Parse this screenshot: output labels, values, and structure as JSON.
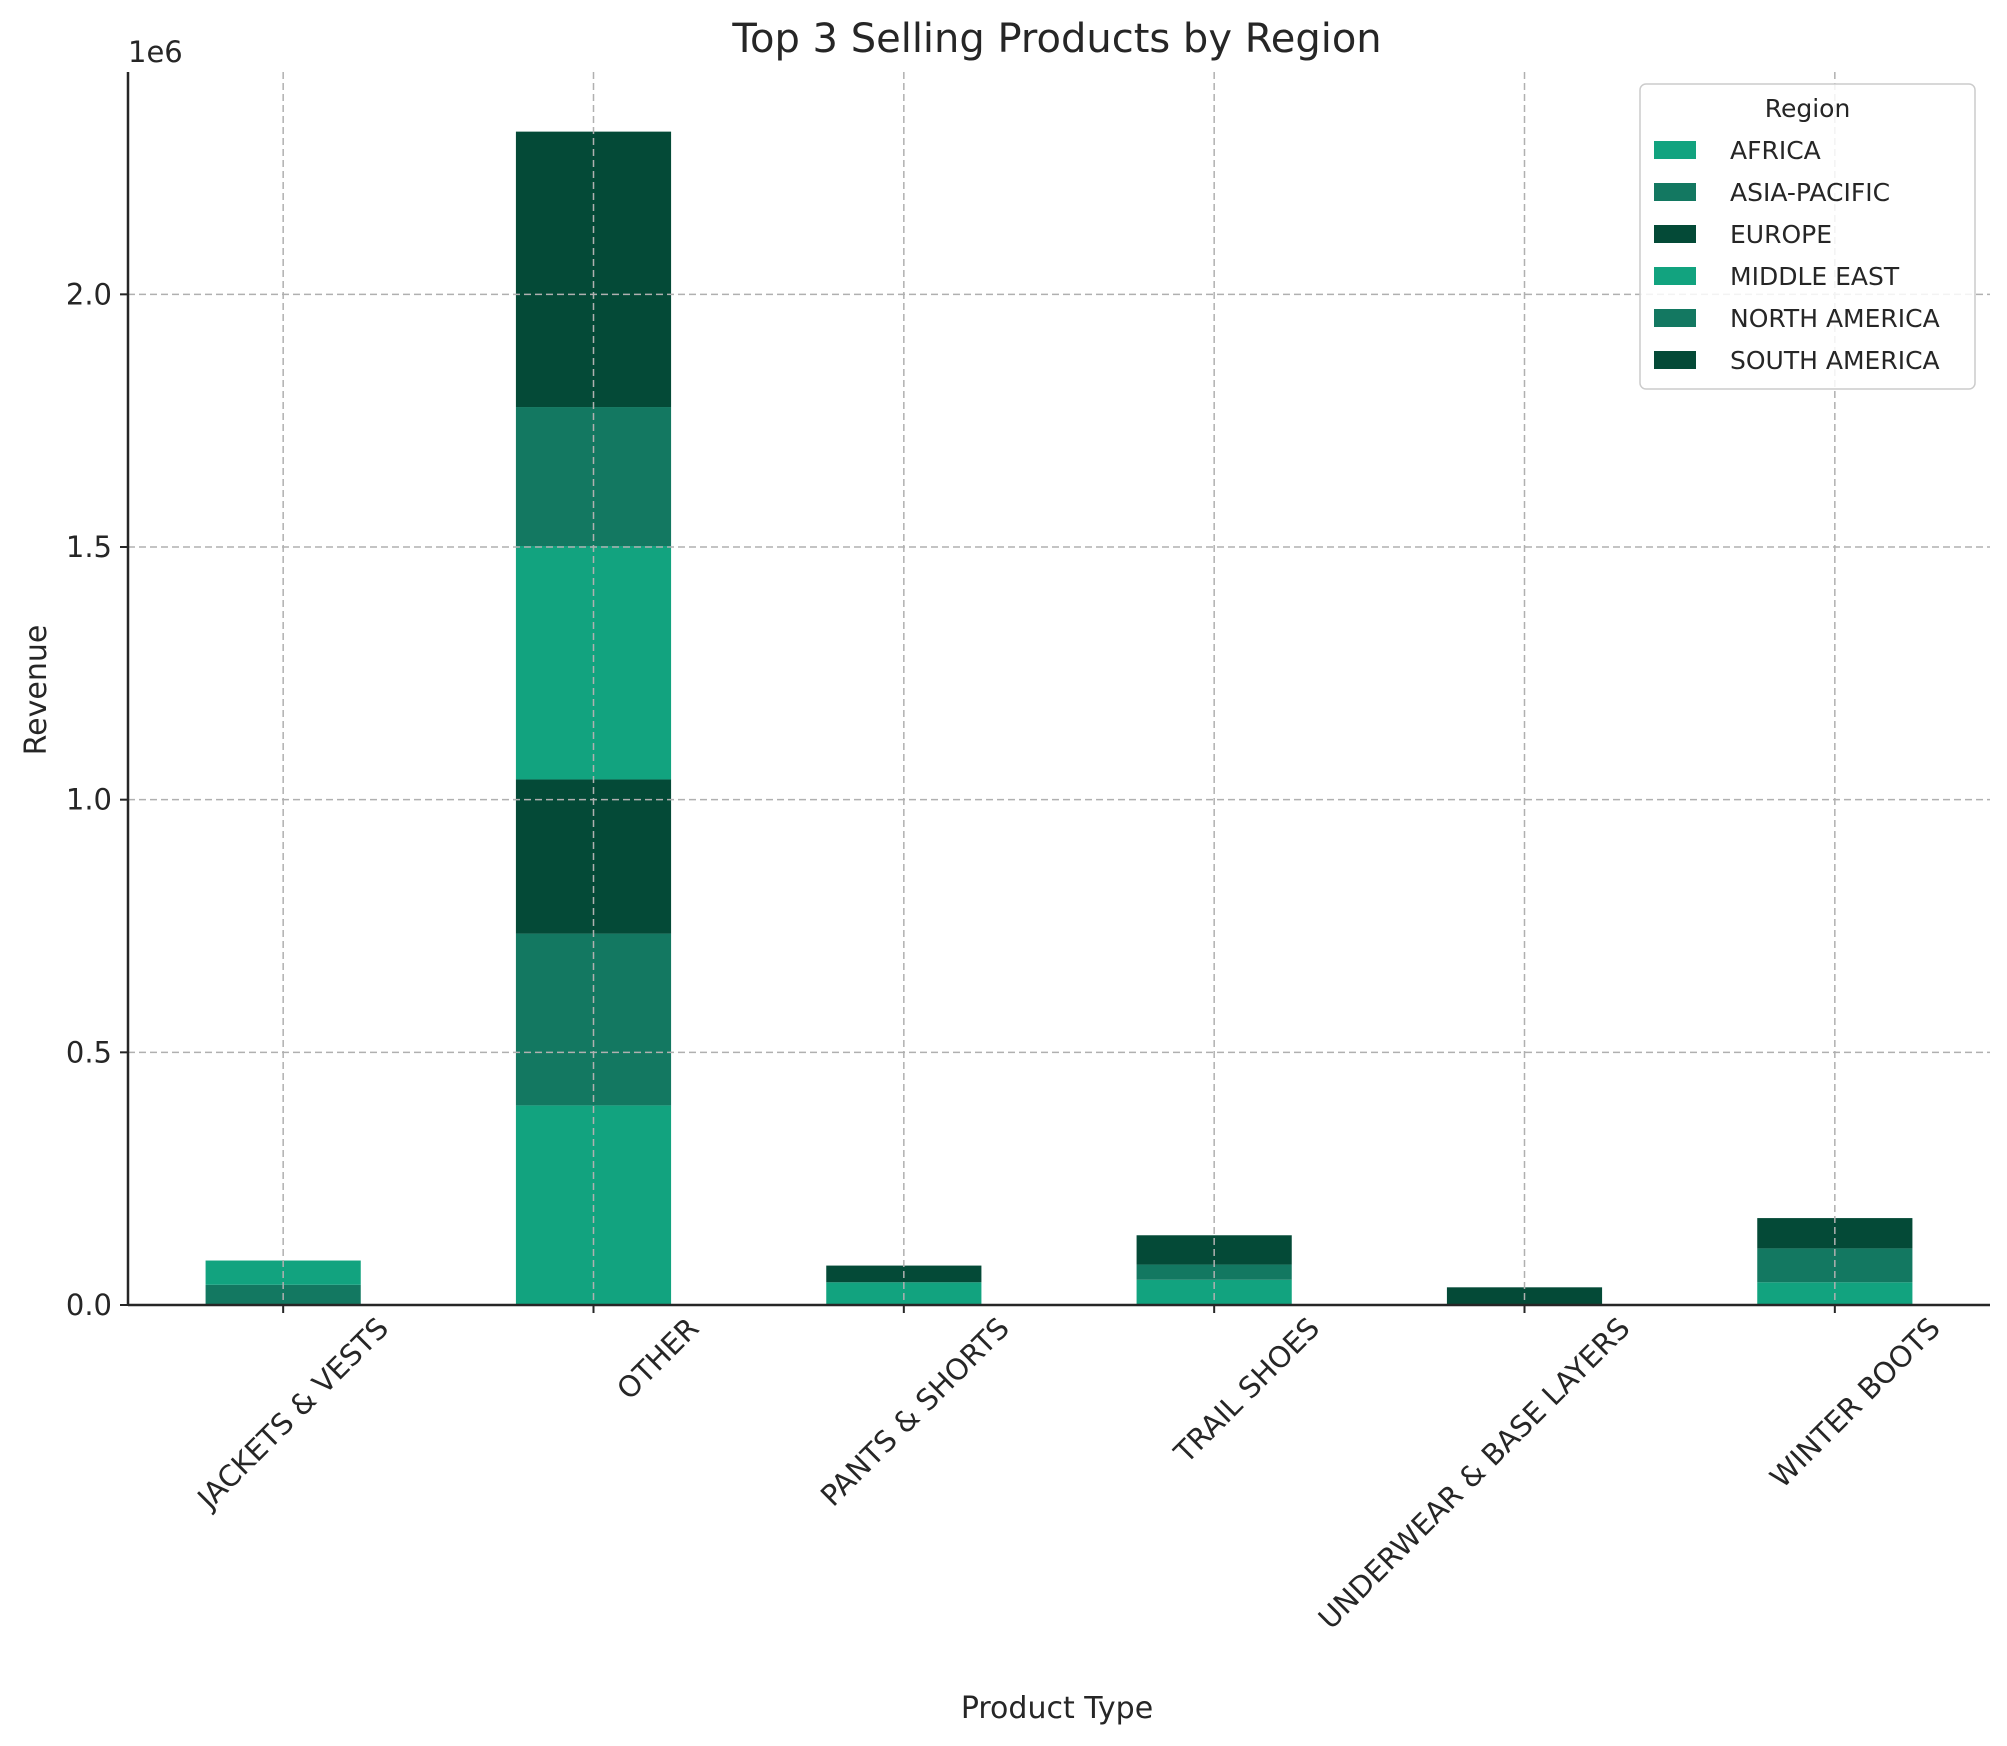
{
  "chart_data": {
    "type": "bar",
    "stacked": true,
    "title": "Top 3 Selling Products by Region",
    "xlabel": "Product Type",
    "ylabel": "Revenue",
    "y_offset_label": "1e6",
    "ylim": [
      0,
      2440000
    ],
    "yticks": [
      0,
      500000,
      1000000,
      1500000,
      2000000
    ],
    "ytick_labels": [
      "0.0",
      "0.5",
      "1.0",
      "1.5",
      "2.0"
    ],
    "grid": true,
    "legend": {
      "title": "Region",
      "placement": "top-right"
    },
    "categories": [
      "JACKETS & VESTS",
      "OTHER",
      "PANTS & SHORTS",
      "TRAIL SHOES",
      "UNDERWEAR & BASE LAYERS",
      "WINTER BOOTS"
    ],
    "series": [
      {
        "name": "AFRICA",
        "color": "#12a37f",
        "values": [
          0,
          395000,
          0,
          0,
          0,
          0
        ]
      },
      {
        "name": "ASIA-PACIFIC",
        "color": "#137861",
        "values": [
          40000,
          340000,
          0,
          0,
          0,
          0
        ]
      },
      {
        "name": "EUROPE",
        "color": "#044a37",
        "values": [
          0,
          305000,
          0,
          0,
          35000,
          0
        ]
      },
      {
        "name": "MIDDLE EAST",
        "color": "#12a37f",
        "values": [
          48000,
          462000,
          45000,
          50000,
          0,
          45000
        ]
      },
      {
        "name": "NORTH AMERICA",
        "color": "#137861",
        "values": [
          0,
          275000,
          0,
          30000,
          0,
          67000
        ]
      },
      {
        "name": "SOUTH AMERICA",
        "color": "#044a37",
        "values": [
          0,
          545000,
          33000,
          58000,
          0,
          60000
        ]
      }
    ]
  }
}
